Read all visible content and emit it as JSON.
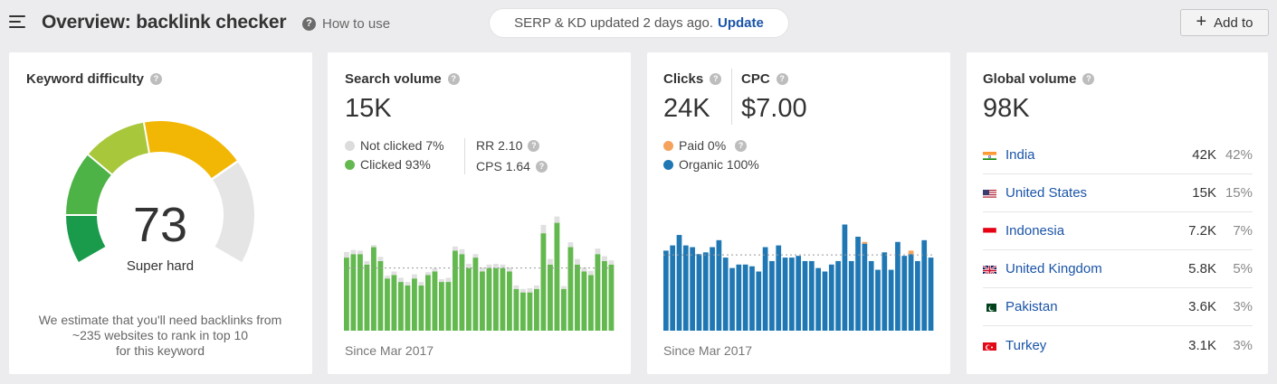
{
  "header": {
    "title": "Overview: backlink checker",
    "how_to_use": "How to use",
    "serp_text": "SERP & KD updated 2 days ago.",
    "update_link": "Update",
    "add_to": "Add to"
  },
  "keyword_difficulty": {
    "title": "Keyword difficulty",
    "value": "73",
    "label": "Super hard",
    "note_lines": [
      "We estimate that you'll need backlinks from",
      "~235 websites to rank in top 10",
      "for this keyword"
    ],
    "gauge_fraction": 0.73
  },
  "search_volume": {
    "title": "Search volume",
    "value": "15K",
    "not_clicked": "Not clicked 7%",
    "clicked": "Clicked 93%",
    "rr": "RR 2.10",
    "cps": "CPS 1.64",
    "since": "Since Mar 2017",
    "colors": {
      "clicked": "#63b94f",
      "not_clicked": "#e0e0e0"
    }
  },
  "clicks": {
    "title": "Clicks",
    "value": "24K",
    "cpc_title": "CPC",
    "cpc_value": "$7.00",
    "paid": "Paid 0%",
    "organic": "Organic 100%",
    "since": "Since Mar 2017",
    "colors": {
      "organic": "#1f78b4",
      "paid": "#f5a35c"
    }
  },
  "global_volume": {
    "title": "Global volume",
    "value": "98K",
    "rows": [
      {
        "country": "India",
        "volume": "42K",
        "pct": "42%",
        "flag": "in"
      },
      {
        "country": "United States",
        "volume": "15K",
        "pct": "15%",
        "flag": "us"
      },
      {
        "country": "Indonesia",
        "volume": "7.2K",
        "pct": "7%",
        "flag": "id"
      },
      {
        "country": "United Kingdom",
        "volume": "5.8K",
        "pct": "5%",
        "flag": "gb"
      },
      {
        "country": "Pakistan",
        "volume": "3.6K",
        "pct": "3%",
        "flag": "pk"
      },
      {
        "country": "Turkey",
        "volume": "3.1K",
        "pct": "3%",
        "flag": "tr"
      }
    ]
  },
  "chart_data": [
    {
      "type": "bar",
      "name": "search-volume-history",
      "x_label": "Since Mar 2017",
      "series": [
        {
          "name": "Clicked",
          "values": [
            10.5,
            11.0,
            11.0,
            9.5,
            12.0,
            10.0,
            7.5,
            8.0,
            7.0,
            6.5,
            7.5,
            6.5,
            8.0,
            8.5,
            7.0,
            7.0,
            11.5,
            11.0,
            9.0,
            10.5,
            8.5,
            9.0,
            9.0,
            9.0,
            8.5,
            6.0,
            5.5,
            5.5,
            6.0,
            14.0,
            9.5,
            15.5,
            6.0,
            12.0,
            9.5,
            8.5,
            8.0,
            11.0,
            10.0,
            9.5
          ]
        },
        {
          "name": "Not clicked",
          "values": [
            0.8,
            0.6,
            0.5,
            0.5,
            0.3,
            0.6,
            0.4,
            0.5,
            0.6,
            0.5,
            0.6,
            0.5,
            0.4,
            0.5,
            0.4,
            0.6,
            0.6,
            0.7,
            0.6,
            0.5,
            0.6,
            0.5,
            0.6,
            0.5,
            0.6,
            0.5,
            0.5,
            0.6,
            0.5,
            1.2,
            0.8,
            0.9,
            0.4,
            0.7,
            0.8,
            0.6,
            0.6,
            0.8,
            0.7,
            0.6
          ]
        }
      ],
      "ylim": [
        0,
        17
      ]
    },
    {
      "type": "bar",
      "name": "clicks-history",
      "x_label": "Since Mar 2017",
      "series": [
        {
          "name": "Organic",
          "values": [
            23.0,
            24.5,
            27.5,
            24.5,
            24.0,
            22.0,
            22.5,
            24.0,
            26.0,
            21.0,
            18.0,
            19.0,
            19.0,
            18.5,
            17.0,
            24.0,
            20.0,
            24.5,
            21.0,
            21.0,
            21.5,
            20.0,
            20.0,
            18.0,
            17.0,
            19.0,
            20.0,
            30.5,
            20.0,
            27.0,
            25.0,
            20.0,
            17.5,
            22.5,
            17.5,
            25.5,
            21.5,
            22.0,
            20.0,
            26.0,
            21.0
          ]
        },
        {
          "name": "Paid",
          "values": [
            0,
            0,
            0,
            0,
            0,
            0,
            0,
            0,
            0,
            0,
            0,
            0,
            0,
            0,
            0,
            0,
            0,
            0,
            0,
            0,
            0,
            0,
            0,
            0,
            0,
            0,
            0,
            0,
            0,
            0,
            0.5,
            0,
            0,
            0,
            0,
            0,
            0,
            1.0,
            0,
            0,
            0
          ]
        }
      ],
      "ylim": [
        0,
        34
      ]
    }
  ]
}
